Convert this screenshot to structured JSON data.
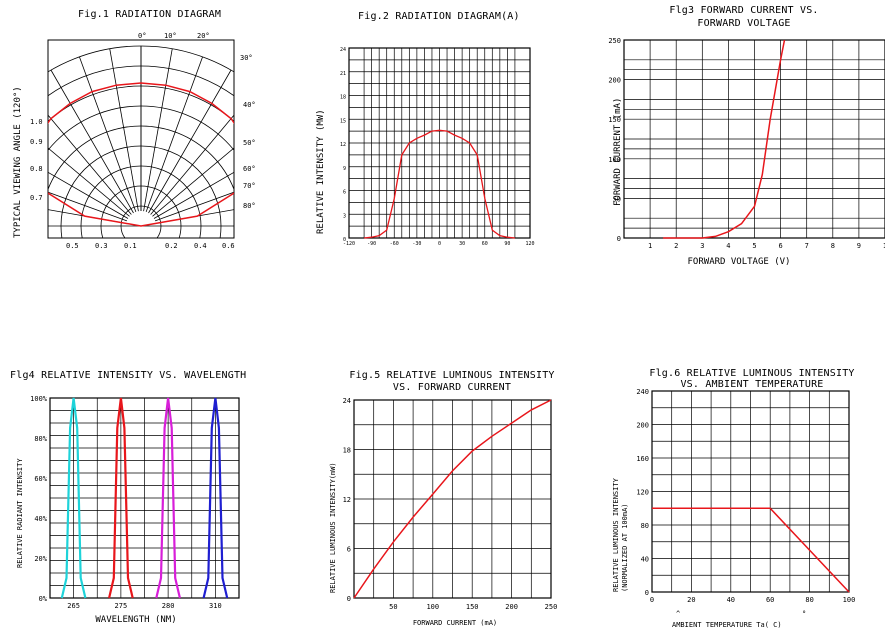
{
  "charts": [
    {
      "id": "fig1",
      "title": [
        "Fig.1 RADIATION DIAGRAM"
      ],
      "ylabel": "TYPICAL VIEWING ANGLE (120°)",
      "angle_labels": [
        "0°",
        "10°",
        "20°",
        "30°",
        "40°",
        "50°",
        "60°",
        "70°",
        "80°"
      ],
      "left_labels": [
        "1.0",
        "0.9",
        "0.8",
        "0.7"
      ],
      "x_tick_labels": [
        "0.5",
        "0.3",
        "0.1",
        "0.2",
        "0.4",
        "0.6"
      ]
    },
    {
      "id": "fig2",
      "title": [
        "Fig.2 RADIATION DIAGRAM(A)"
      ],
      "ylabel": "RELATIVE INTENSITY (MW)",
      "y_tick_labels": [
        "0",
        "3",
        "6",
        "9",
        "12",
        "15",
        "18",
        "21",
        "24"
      ],
      "x_tick_labels": [
        "-120",
        "-90",
        "-60",
        "-30",
        "0",
        "30",
        "60",
        "90",
        "120"
      ]
    },
    {
      "id": "fig3",
      "title": [
        "Flg3 FORWARD CURRENT VS.",
        "FORWARD VOLTAGE"
      ],
      "xlabel": "FORWARD VOLTAGE (V)",
      "ylabel": "FORWARD CURRENT (mA)",
      "y_tick_labels": [
        "0",
        "50",
        "100",
        "150",
        "200",
        "250"
      ],
      "x_tick_labels": [
        "1",
        "2",
        "3",
        "4",
        "5",
        "6",
        "7",
        "8",
        "9",
        "1"
      ]
    },
    {
      "id": "fig4",
      "title": [
        "Flg4 RELATIVE INTENSITY VS. WAVELENGTH"
      ],
      "xlabel": "WAVELENGTH (NM)",
      "ylabel": "RELATIVE RADIANT INTENSITY",
      "y_tick_labels": [
        "0%",
        "20%",
        "40%",
        "60%",
        "80%",
        "100%"
      ],
      "x_tick_labels": [
        "265",
        "275",
        "280",
        "310"
      ]
    },
    {
      "id": "fig5",
      "title": [
        "Fig.5 RELATIVE LUMINOUS INTENSITY",
        "VS. FORWARD CURRENT"
      ],
      "xlabel": "FORWARD CURRENT (mA)",
      "ylabel": "RELATIVE LUMINOUS INTENSITY(mW)",
      "y_tick_labels": [
        "0",
        "6",
        "12",
        "18",
        "24"
      ],
      "x_tick_labels": [
        "50",
        "100",
        "150",
        "200",
        "250"
      ]
    },
    {
      "id": "fig6",
      "title": [
        "Flg.6 RELATIVE LUMINOUS INTENSITY",
        "VS. AMBIENT TEMPERATURE"
      ],
      "xlabel": "AMBIENT TEMPERATURE Ta( C)",
      "ylabel": [
        "RELATIVE LUMINOUS INTENSITY",
        "(NORMALIZED AT 100mA)"
      ],
      "y_tick_labels": [
        "0",
        "40",
        "80",
        "120",
        "160",
        "200",
        "240"
      ],
      "x_tick_labels": [
        "0",
        "20",
        "40",
        "60",
        "80",
        "100"
      ]
    }
  ],
  "chart_data": [
    {
      "type": "line",
      "id": "fig1",
      "subtype": "polar",
      "title": "Fig.1 RADIATION DIAGRAM",
      "ylabel": "TYPICAL VIEWING ANGLE (120°)",
      "angles_deg": [
        0,
        10,
        20,
        30,
        40,
        50,
        60,
        70,
        80
      ],
      "series": [
        {
          "color": "#e8161b",
          "theta_deg": [
            -90,
            -80,
            -70,
            -60,
            -50,
            -40,
            -30,
            -20,
            -10,
            0,
            10,
            20,
            30,
            40,
            50,
            60,
            70,
            80,
            90
          ],
          "r": [
            0.0,
            0.4,
            0.72,
            0.88,
            0.95,
            0.98,
            0.99,
            1.0,
            1.0,
            1.0,
            1.0,
            1.0,
            0.99,
            0.98,
            0.95,
            0.88,
            0.72,
            0.4,
            0.0
          ]
        }
      ]
    },
    {
      "type": "line",
      "id": "fig2",
      "title": "Fig.2 RADIATION DIAGRAM(A)",
      "ylabel": "RELATIVE INTENSITY (MW)",
      "xlim": [
        -120,
        120
      ],
      "ylim": [
        0,
        24
      ],
      "series": [
        {
          "color": "#e8161b",
          "x": [
            -100,
            -90,
            -80,
            -70,
            -60,
            -50,
            -40,
            -30,
            -20,
            -10,
            0,
            10,
            20,
            30,
            40,
            50,
            60,
            70,
            80,
            90,
            100
          ],
          "y": [
            0,
            0.1,
            0.3,
            1,
            5,
            10.5,
            12,
            12.6,
            13,
            13.5,
            13.6,
            13.5,
            13,
            12.6,
            12,
            10.5,
            5,
            1,
            0.3,
            0.1,
            0
          ]
        }
      ]
    },
    {
      "type": "line",
      "id": "fig3",
      "title": "Flg3 FORWARD CURRENT VS. FORWARD VOLTAGE",
      "xlabel": "FORWARD VOLTAGE (V)",
      "ylabel": "FORWARD CURRENT (mA)",
      "xlim": [
        0,
        10
      ],
      "ylim": [
        0,
        250
      ],
      "series": [
        {
          "color": "#e8161b",
          "x": [
            1.5,
            3,
            3.5,
            4,
            4.5,
            5,
            5.3,
            5.6,
            6,
            6.15
          ],
          "y": [
            0,
            0,
            2,
            8,
            18,
            40,
            80,
            150,
            225,
            250
          ]
        }
      ]
    },
    {
      "type": "line",
      "id": "fig4",
      "title": "Flg4 RELATIVE INTENSITY VS. WAVELENGTH",
      "xlabel": "WAVELENGTH (NM)",
      "ylabel": "RELATIVE RADIANT INTENSITY",
      "xlim": [
        0,
        8
      ],
      "ylim": [
        0,
        100
      ],
      "x_ticks": [
        1,
        3,
        5,
        7
      ],
      "series": [
        {
          "color": "#1ed3d9",
          "x": [
            0.5,
            0.7,
            0.85,
            1,
            1.15,
            1.3,
            1.5
          ],
          "y": [
            0,
            10,
            85,
            100,
            85,
            10,
            0
          ]
        },
        {
          "color": "#e8161b",
          "x": [
            2.5,
            2.7,
            2.85,
            3,
            3.15,
            3.3,
            3.5
          ],
          "y": [
            0,
            10,
            85,
            100,
            85,
            10,
            0
          ]
        },
        {
          "color": "#d81ed9",
          "x": [
            4.5,
            4.7,
            4.85,
            5,
            5.15,
            5.3,
            5.5
          ],
          "y": [
            0,
            10,
            85,
            100,
            85,
            10,
            0
          ]
        },
        {
          "color": "#1f1fd1",
          "x": [
            6.5,
            6.7,
            6.85,
            7,
            7.15,
            7.3,
            7.5
          ],
          "y": [
            0,
            10,
            85,
            100,
            85,
            10,
            0
          ]
        }
      ]
    },
    {
      "type": "line",
      "id": "fig5",
      "title": "Fig.5 RELATIVE LUMINOUS INTENSITY VS. FORWARD CURRENT",
      "xlabel": "FORWARD CURRENT (mA)",
      "ylabel": "RELATIVE LUMINOUS INTENSITY(mW)",
      "xlim": [
        0,
        250
      ],
      "ylim": [
        0,
        24
      ],
      "series": [
        {
          "color": "#e8161b",
          "x": [
            0,
            25,
            50,
            75,
            100,
            125,
            150,
            175,
            200,
            225,
            250
          ],
          "y": [
            0,
            3.5,
            6.8,
            9.8,
            12.6,
            15.4,
            17.8,
            19.6,
            21.2,
            22.8,
            24
          ]
        }
      ]
    },
    {
      "type": "line",
      "id": "fig6",
      "title": "Flg.6 RELATIVE LUMINOUS INTENSITY VS. AMBIENT TEMPERATURE",
      "xlabel": "AMBIENT TEMPERATURE Ta( C)",
      "ylabel": "RELATIVE LUMINOUS INTENSITY (NORMALIZED AT 100mA)",
      "xlim": [
        0,
        100
      ],
      "ylim": [
        0,
        240
      ],
      "series": [
        {
          "color": "#e8161b",
          "x": [
            0,
            60,
            100
          ],
          "y": [
            100,
            100,
            0
          ]
        }
      ]
    }
  ]
}
